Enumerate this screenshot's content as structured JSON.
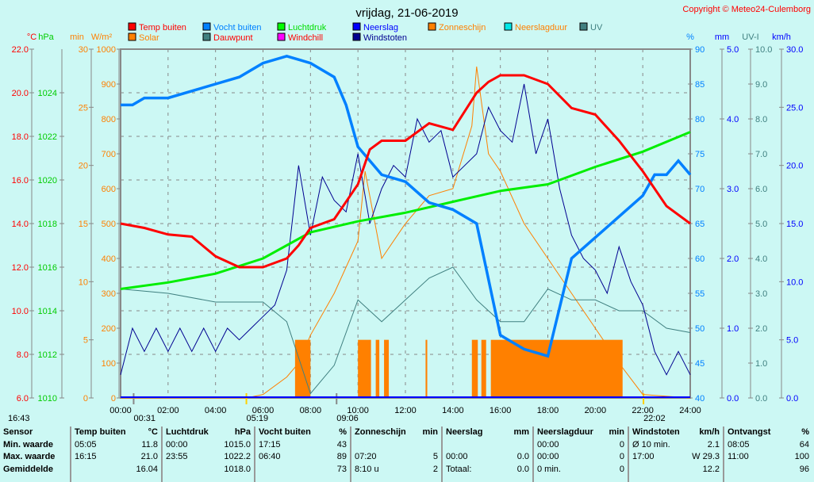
{
  "title": "vrijdag, 21-06-2019",
  "copyright": "Copyright © Meteo24-Culemborg",
  "legend": [
    {
      "label": "Temp buiten",
      "color": "#ff0000",
      "text": "#ff0000"
    },
    {
      "label": "Solar",
      "color": "#ff8000",
      "text": "#ff8000"
    },
    {
      "label": "Vocht buiten",
      "color": "#0080ff",
      "text": "#0080ff"
    },
    {
      "label": "Dauwpunt",
      "color": "#408080",
      "text": "#ff0000"
    },
    {
      "label": "Luchtdruk",
      "color": "#00ff00",
      "text": "#00dd00"
    },
    {
      "label": "Windchill",
      "color": "#ff00ff",
      "text": "#ff0000"
    },
    {
      "label": "Neerslag",
      "color": "#0000ff",
      "text": "#0000ff"
    },
    {
      "label": "Windstoten",
      "color": "#000090",
      "text": "#000090"
    },
    {
      "label": "Zonneschijn",
      "color": "#ff8000",
      "text": "#ff8000"
    },
    {
      "label": "Neerslagduur",
      "color": "#00e8e8",
      "text": "#ff8000"
    },
    {
      "label": "UV",
      "color": "#408080",
      "text": "#408080"
    }
  ],
  "axes": {
    "units_left": [
      "°C",
      "hPa",
      "min",
      "W/m²"
    ],
    "units_right": [
      "%",
      "mm",
      "UV-I",
      "km/h"
    ],
    "temp": [
      "22.0",
      "20.0",
      "18.0",
      "16.0",
      "14.0",
      "12.0",
      "10.0",
      "8.0",
      "6.0"
    ],
    "hpa": [
      "1024",
      "1022",
      "1020",
      "1018",
      "1016",
      "1014",
      "1012",
      "1010"
    ],
    "min": [
      "30",
      "25",
      "20",
      "15",
      "10",
      "5",
      "0"
    ],
    "wm2": [
      "1000",
      "900",
      "800",
      "700",
      "600",
      "500",
      "400",
      "300",
      "200",
      "100",
      "0"
    ],
    "pct": [
      "90",
      "85",
      "80",
      "75",
      "70",
      "65",
      "60",
      "55",
      "50",
      "45",
      "40"
    ],
    "mm": [
      "5.0",
      "4.0",
      "3.0",
      "2.0",
      "1.0",
      "0.0"
    ],
    "uv": [
      "10.0",
      "9.0",
      "8.0",
      "7.0",
      "6.0",
      "5.0",
      "4.0",
      "3.0",
      "2.0",
      "1.0",
      "0.0"
    ],
    "kmh": [
      "30.0",
      "25.0",
      "20.0",
      "15.0",
      "10.0",
      "5.0",
      "0.0"
    ],
    "x": [
      "00:00",
      "02:00",
      "04:00",
      "06:00",
      "08:00",
      "10:00",
      "12:00",
      "14:00",
      "16:00",
      "18:00",
      "20:00",
      "22:00",
      "24:00"
    ]
  },
  "astro": [
    {
      "t": "16:43",
      "h": -3.6
    },
    {
      "t": "00:31",
      "h": 0.55
    },
    {
      "t": "05:19",
      "h": 5.3
    },
    {
      "t": "09:06",
      "h": 9.1
    },
    {
      "t": "22:02",
      "h": 22.03
    }
  ],
  "chart_data": {
    "type": "line",
    "title": "vrijdag, 21-06-2019",
    "xlim": [
      0,
      24
    ],
    "series": [
      {
        "name": "Temp buiten",
        "unit": "°C",
        "ylim": [
          6,
          22
        ],
        "x": [
          0,
          1,
          2,
          3,
          4,
          5,
          6,
          7,
          7.5,
          8,
          9,
          10,
          10.5,
          11,
          12,
          13,
          14,
          15,
          15.5,
          16,
          17,
          18,
          19,
          20,
          21,
          22,
          23,
          24
        ],
        "y": [
          14.0,
          13.8,
          13.5,
          13.4,
          12.5,
          12.0,
          12.0,
          12.4,
          13.0,
          13.8,
          14.2,
          15.8,
          17.4,
          17.8,
          17.8,
          18.6,
          18.3,
          20.0,
          20.5,
          20.8,
          20.8,
          20.4,
          19.3,
          19.0,
          17.8,
          16.4,
          14.8,
          14.0
        ]
      },
      {
        "name": "Vocht buiten",
        "unit": "%",
        "ylim": [
          40,
          90
        ],
        "x": [
          0,
          0.5,
          1,
          2,
          3,
          4,
          5,
          6,
          7,
          8,
          9,
          9.5,
          10,
          10.5,
          11,
          12,
          13,
          14,
          15,
          15.5,
          16,
          17,
          18,
          19,
          20,
          21,
          22,
          22.5,
          23,
          23.5,
          24
        ],
        "y": [
          82,
          82,
          83,
          83,
          84,
          85,
          86,
          88,
          89,
          88,
          86,
          82,
          76,
          74,
          72,
          71,
          68,
          67,
          65,
          57,
          49,
          47,
          46,
          60,
          63,
          66,
          69,
          72,
          72,
          74,
          72
        ]
      },
      {
        "name": "Luchtdruk",
        "unit": "hPa",
        "ylim": [
          1010,
          1026
        ],
        "x": [
          0,
          2,
          4,
          6,
          8,
          10,
          12,
          14,
          16,
          18,
          20,
          22,
          24
        ],
        "y": [
          1015.0,
          1015.3,
          1015.7,
          1016.4,
          1017.6,
          1018.1,
          1018.5,
          1019.0,
          1019.5,
          1019.8,
          1020.6,
          1021.3,
          1022.2
        ]
      },
      {
        "name": "Dauwpunt",
        "unit": "°C",
        "ylim": [
          6,
          22
        ],
        "x": [
          0,
          2,
          4,
          6,
          7,
          8,
          9,
          10,
          11,
          12,
          13,
          14,
          15,
          16,
          17,
          18,
          19,
          20,
          21,
          22,
          23,
          24
        ],
        "y": [
          11.0,
          10.8,
          10.4,
          10.4,
          9.5,
          6.2,
          7.5,
          10.5,
          9.5,
          10.5,
          11.5,
          12.0,
          10.5,
          9.5,
          9.5,
          11.0,
          10.5,
          10.5,
          10.0,
          10.0,
          9.2,
          9.0
        ]
      },
      {
        "name": "Solar",
        "unit": "W/m²",
        "ylim": [
          0,
          1000
        ],
        "x": [
          0,
          5.3,
          6,
          7,
          7.5,
          8,
          9,
          10,
          10.3,
          11,
          12,
          13,
          14,
          14.8,
          15,
          15.5,
          16,
          17,
          18,
          19,
          20,
          21,
          22,
          24
        ],
        "y": [
          0,
          0,
          10,
          60,
          100,
          180,
          300,
          450,
          650,
          400,
          500,
          580,
          600,
          780,
          950,
          700,
          650,
          500,
          400,
          300,
          200,
          100,
          10,
          0
        ]
      },
      {
        "name": "Windstoten",
        "unit": "km/h",
        "ylim": [
          0,
          30
        ],
        "x": [
          0,
          0.5,
          1,
          1.5,
          2,
          2.5,
          3,
          3.5,
          4,
          4.5,
          5,
          5.5,
          6,
          6.5,
          7,
          7.5,
          8,
          8.5,
          9,
          9.5,
          10,
          10.5,
          11,
          11.5,
          12,
          12.5,
          13,
          13.5,
          14,
          14.5,
          15,
          15.5,
          16,
          16.5,
          17,
          17.5,
          18,
          18.5,
          19,
          19.5,
          20,
          20.5,
          21,
          21.5,
          22,
          22.5,
          23,
          23.5,
          24
        ],
        "y": [
          2,
          6,
          4,
          6,
          4,
          6,
          4,
          6,
          4,
          6,
          5,
          6,
          7,
          8,
          11,
          20,
          14,
          19,
          17,
          16,
          21,
          15,
          18,
          20,
          19,
          24,
          22,
          23,
          19,
          20,
          21,
          25,
          23,
          22,
          27,
          21,
          24,
          18,
          14,
          12,
          11,
          9,
          13,
          10,
          8,
          4,
          2,
          4,
          2
        ]
      },
      {
        "name": "Zonneschijn",
        "unit": "min",
        "ylim": [
          0,
          30
        ],
        "intervals": [
          [
            7.35,
            8.0
          ],
          [
            10.0,
            10.55
          ],
          [
            10.75,
            10.9
          ],
          [
            11.1,
            11.3
          ],
          [
            12.85,
            12.92
          ],
          [
            14.8,
            15.05
          ],
          [
            15.2,
            15.4
          ],
          [
            15.6,
            21.15
          ]
        ],
        "value": 5
      }
    ]
  },
  "table": {
    "cols": [
      {
        "h": [
          "Sensor",
          ""
        ],
        "r": [
          [
            "Min. waarde",
            ""
          ],
          [
            "Max. waarde",
            ""
          ],
          [
            "Gemiddelde",
            ""
          ]
        ]
      },
      {
        "h": [
          "Temp buiten",
          "°C"
        ],
        "r": [
          [
            "05:05",
            "11.8"
          ],
          [
            "16:15",
            "21.0"
          ],
          [
            "",
            "16.04"
          ]
        ]
      },
      {
        "h": [
          "Luchtdruk",
          "hPa"
        ],
        "r": [
          [
            "00:00",
            "1015.0"
          ],
          [
            "23:55",
            "1022.2"
          ],
          [
            "",
            "1018.0"
          ]
        ]
      },
      {
        "h": [
          "Vocht buiten",
          "%"
        ],
        "r": [
          [
            "17:15",
            "43"
          ],
          [
            "06:40",
            "89"
          ],
          [
            "",
            "73"
          ]
        ]
      },
      {
        "h": [
          "Zonneschijn",
          "min"
        ],
        "r": [
          [
            "",
            ""
          ],
          [
            "07:20",
            "5"
          ],
          [
            "8:10 u",
            "2"
          ]
        ]
      },
      {
        "h": [
          "Neerslag",
          "mm"
        ],
        "r": [
          [
            "",
            ""
          ],
          [
            "00:00",
            "0.0"
          ],
          [
            "Totaal:",
            "0.0"
          ]
        ]
      },
      {
        "h": [
          "Neerslagduur",
          "min"
        ],
        "r": [
          [
            "00:00",
            "0"
          ],
          [
            "00:00",
            "0"
          ],
          [
            "0 min.",
            "0"
          ]
        ]
      },
      {
        "h": [
          "Windstoten",
          "km/h"
        ],
        "r": [
          [
            "Ø 10 min.",
            "2.1"
          ],
          [
            "17:00",
            "W 29.3"
          ],
          [
            "",
            "12.2"
          ]
        ]
      },
      {
        "h": [
          "Ontvangst",
          "%"
        ],
        "r": [
          [
            "08:05",
            "64"
          ],
          [
            "11:00",
            "100"
          ],
          [
            "",
            "96"
          ]
        ]
      }
    ]
  }
}
